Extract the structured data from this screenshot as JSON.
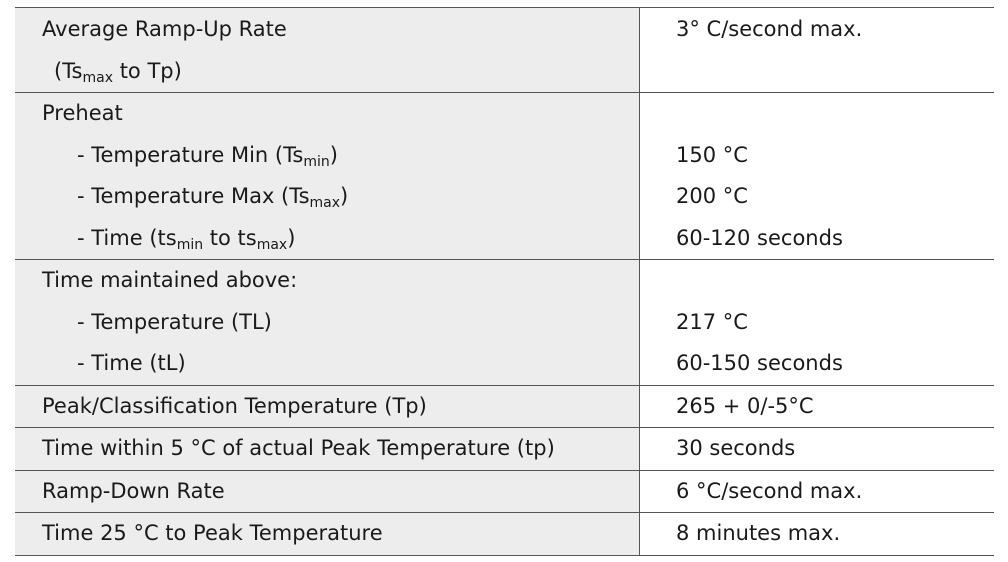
{
  "rows": {
    "ramp_up": {
      "label": "Average Ramp-Up Rate",
      "sub_open": "(Ts",
      "sub_max": "max",
      "sub_close": " to Tp)",
      "value": "3° C/second max."
    },
    "preheat": {
      "label": "Preheat",
      "temp_min_label": "- Temperature Min (Ts",
      "temp_min_sub": "min",
      "temp_min_close": ")",
      "temp_min_value": "150 °C",
      "temp_max_label": "- Temperature Max (Ts",
      "temp_max_sub": "max",
      "temp_max_close": ")",
      "temp_max_value": "200 °C",
      "time_label_a": "- Time (ts",
      "time_sub_min": "min",
      "time_label_b": " to ts",
      "time_sub_max": "max",
      "time_close": ")",
      "time_value": "60-120 seconds"
    },
    "maintained": {
      "label": "Time maintained above:",
      "temp_label": "- Temperature (TL)",
      "temp_value": "217 °C",
      "time_label": "- Time (tL)",
      "time_value": "60-150 seconds"
    },
    "peak": {
      "label": "Peak/Classification Temperature (Tp)",
      "value": "265 + 0/-5°C"
    },
    "within5": {
      "label": "Time within 5 °C of actual Peak Temperature (tp)",
      "value": "30 seconds"
    },
    "ramp_down": {
      "label": "Ramp-Down Rate",
      "value": "6 °C/second max."
    },
    "to_peak": {
      "label": "Time 25 °C to Peak Temperature",
      "value": "8 minutes max."
    }
  },
  "colors": {
    "label_bg": "#ededed",
    "value_bg": "#ffffff",
    "border": "#555555",
    "text": "#1a1a1a"
  }
}
